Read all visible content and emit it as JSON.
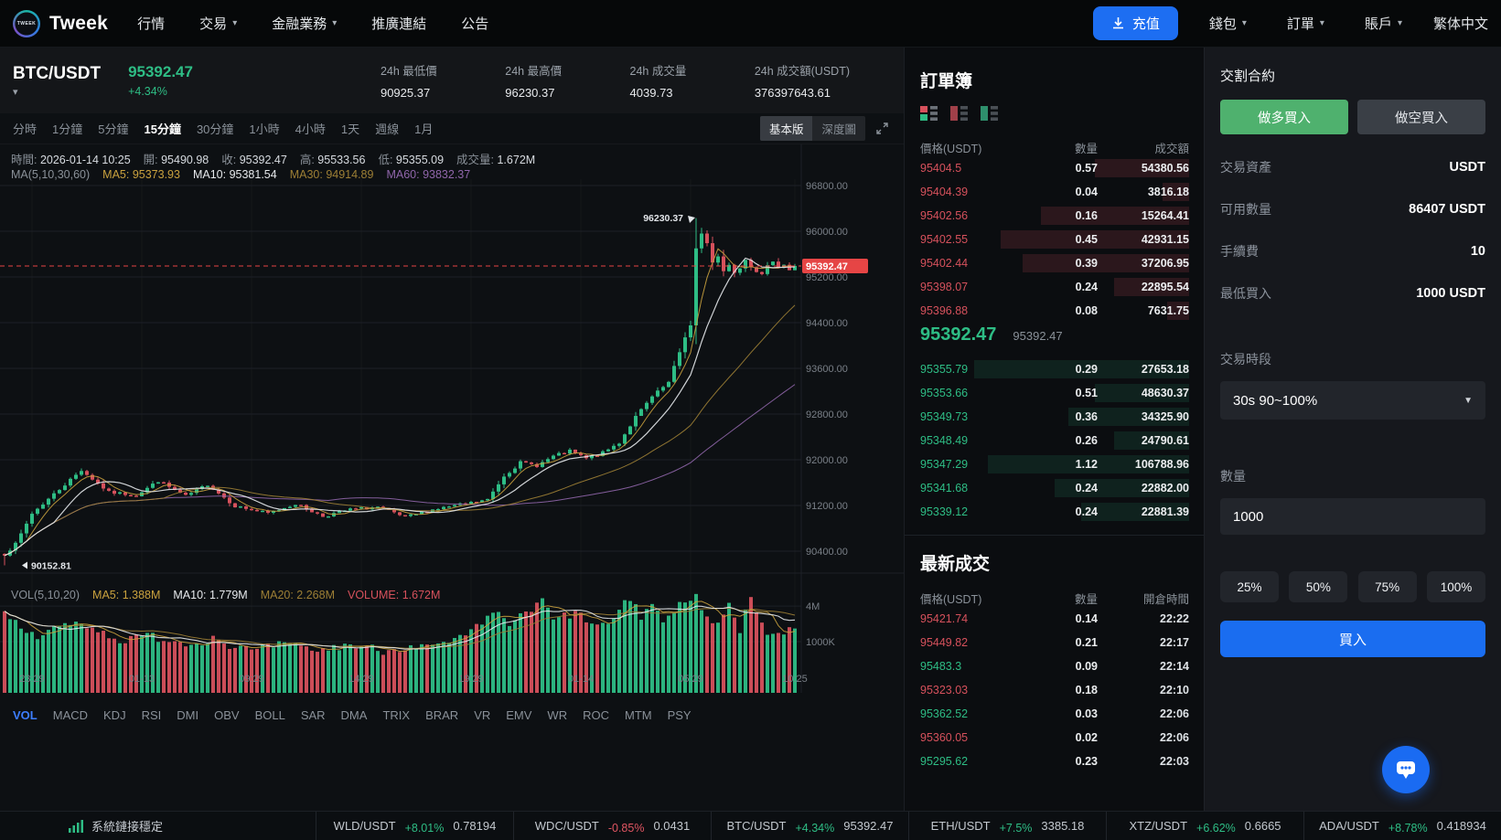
{
  "nav": {
    "brand": "Tweek",
    "menu": [
      {
        "id": "market",
        "label": "行情",
        "caret": false
      },
      {
        "id": "trade",
        "label": "交易",
        "caret": true
      },
      {
        "id": "finance",
        "label": "金融業務",
        "caret": true
      },
      {
        "id": "referral",
        "label": "推廣連結",
        "caret": false
      },
      {
        "id": "announcement",
        "label": "公告",
        "caret": false
      }
    ],
    "deposit_label": "充值",
    "right_menus": [
      {
        "id": "wallet",
        "label": "錢包",
        "caret": true
      },
      {
        "id": "orders",
        "label": "訂單",
        "caret": true
      },
      {
        "id": "account",
        "label": "賬戶",
        "caret": true
      }
    ],
    "language": "繁体中文"
  },
  "symbol": {
    "pair": "BTC/USDT",
    "price": "95392.47",
    "change": "+4.34%",
    "stats": [
      {
        "label": "24h 最低價",
        "value": "90925.37"
      },
      {
        "label": "24h 最高價",
        "value": "96230.37"
      },
      {
        "label": "24h 成交量",
        "value": "4039.73"
      },
      {
        "label": "24h 成交額(USDT)",
        "value": "376397643.61"
      }
    ]
  },
  "toolbar": {
    "timeframes": [
      "分時",
      "1分鐘",
      "5分鐘",
      "15分鐘",
      "30分鐘",
      "1小時",
      "4小時",
      "1天",
      "週線",
      "1月"
    ],
    "active_timeframe": "15分鐘",
    "view_tabs": [
      "基本版",
      "深度圖"
    ],
    "active_view": "基本版"
  },
  "chart_data": {
    "type": "candlestick",
    "pair": "BTC/USDT",
    "interval": "15m",
    "seed": 7,
    "candle_count": 145,
    "info_pairs": [
      [
        "時間",
        "2026-01-14 10:25"
      ],
      [
        "開",
        "95490.98"
      ],
      [
        "收",
        "95392.47"
      ],
      [
        "高",
        "95533.56"
      ],
      [
        "低",
        "95355.09"
      ],
      [
        "成交量",
        "1.672M"
      ]
    ],
    "ma_title": "MA(5,10,30,60)",
    "ma_items": [
      {
        "text": "MA5: 95373.93",
        "color": "#c9a13e"
      },
      {
        "text": "MA10: 95381.54",
        "color": "#e6e9ec"
      },
      {
        "text": "MA30: 94914.89",
        "color": "#9d7f35"
      },
      {
        "text": "MA60: 93832.37",
        "color": "#9066ab"
      }
    ],
    "vol_legend": [
      {
        "text": "VOL(5,10,20)",
        "color": "#8a9199"
      },
      {
        "text": "MA5: 1.388M",
        "color": "#c9a13e"
      },
      {
        "text": "MA10: 1.779M",
        "color": "#e6e9ec"
      },
      {
        "text": "MA20: 2.268M",
        "color": "#9d7f35"
      },
      {
        "text": "VOLUME: 1.672M",
        "color": "#d6515c"
      }
    ],
    "y_axis": {
      "max": 96800,
      "step": 800,
      "count": 9,
      "labels": [
        "96800.00",
        "96000.00",
        "95200.00",
        "94400.00",
        "93600.00",
        "92800.00",
        "92000.00",
        "91200.00",
        "90400.00"
      ]
    },
    "vol_axis_labels": [
      "4M",
      "1000K"
    ],
    "price_line": 95392.47,
    "price_line_label": "95392.47",
    "annotations": {
      "high": {
        "value": "96230.37",
        "index": 126
      },
      "low": {
        "value": "90152.81",
        "index": 0
      }
    },
    "x_ticks": [
      {
        "label": "23:29",
        "index": 5
      },
      {
        "label": "01-13",
        "index": 25
      },
      {
        "label": "09:29",
        "index": 45
      },
      {
        "label": "14:29",
        "index": 65
      },
      {
        "label": "19:29",
        "index": 85
      },
      {
        "label": "01-14",
        "index": 105
      },
      {
        "label": "05:29",
        "index": 125
      },
      {
        "label": "10:25",
        "index": 144
      }
    ],
    "close_waypoints": [
      [
        0,
        90350
      ],
      [
        2,
        90520
      ],
      [
        5,
        91060
      ],
      [
        9,
        91400
      ],
      [
        14,
        91820
      ],
      [
        19,
        91430
      ],
      [
        24,
        91380
      ],
      [
        28,
        91630
      ],
      [
        33,
        91360
      ],
      [
        37,
        91570
      ],
      [
        42,
        91190
      ],
      [
        48,
        91060
      ],
      [
        53,
        91230
      ],
      [
        58,
        91010
      ],
      [
        63,
        91130
      ],
      [
        68,
        91170
      ],
      [
        73,
        90990
      ],
      [
        78,
        91130
      ],
      [
        83,
        91210
      ],
      [
        88,
        91300
      ],
      [
        91,
        91720
      ],
      [
        94,
        91950
      ],
      [
        97,
        91900
      ],
      [
        100,
        92060
      ],
      [
        103,
        92150
      ],
      [
        106,
        92020
      ],
      [
        109,
        92120
      ],
      [
        112,
        92300
      ],
      [
        115,
        92750
      ],
      [
        118,
        93100
      ],
      [
        121,
        93350
      ],
      [
        124,
        94150
      ],
      [
        125,
        94350
      ],
      [
        126,
        95700
      ],
      [
        127,
        95950
      ],
      [
        128,
        95800
      ],
      [
        129,
        95450
      ],
      [
        130,
        95560
      ],
      [
        131,
        95300
      ],
      [
        132,
        95420
      ],
      [
        133,
        95280
      ],
      [
        134,
        95350
      ],
      [
        135,
        95500
      ],
      [
        136,
        95380
      ],
      [
        137,
        95300
      ],
      [
        138,
        95260
      ],
      [
        139,
        95420
      ],
      [
        140,
        95480
      ],
      [
        141,
        95350
      ],
      [
        142,
        95400
      ],
      [
        143,
        95330
      ],
      [
        144,
        95392.47
      ]
    ],
    "vol_waypoints": [
      [
        0,
        2.8
      ],
      [
        3,
        1.6
      ],
      [
        6,
        1.2
      ],
      [
        10,
        1.8
      ],
      [
        14,
        2.2
      ],
      [
        18,
        1.4
      ],
      [
        22,
        1.0
      ],
      [
        26,
        1.3
      ],
      [
        30,
        1.1
      ],
      [
        34,
        0.9
      ],
      [
        38,
        1.2
      ],
      [
        42,
        0.8
      ],
      [
        46,
        0.7
      ],
      [
        50,
        0.9
      ],
      [
        54,
        0.8
      ],
      [
        58,
        0.7
      ],
      [
        62,
        0.9
      ],
      [
        66,
        0.8
      ],
      [
        70,
        0.7
      ],
      [
        74,
        0.9
      ],
      [
        78,
        0.8
      ],
      [
        82,
        1.0
      ],
      [
        85,
        1.4
      ],
      [
        88,
        2.4
      ],
      [
        90,
        3.2
      ],
      [
        92,
        2.0
      ],
      [
        94,
        2.6
      ],
      [
        96,
        3.4
      ],
      [
        98,
        5.0
      ],
      [
        100,
        2.2
      ],
      [
        102,
        2.8
      ],
      [
        104,
        3.0
      ],
      [
        106,
        2.4
      ],
      [
        108,
        1.8
      ],
      [
        110,
        2.0
      ],
      [
        112,
        3.0
      ],
      [
        114,
        5.6
      ],
      [
        116,
        2.6
      ],
      [
        118,
        4.4
      ],
      [
        120,
        2.2
      ],
      [
        122,
        3.0
      ],
      [
        124,
        5.4
      ],
      [
        126,
        5.7
      ],
      [
        128,
        2.4
      ],
      [
        130,
        2.0
      ],
      [
        132,
        4.1
      ],
      [
        134,
        1.6
      ],
      [
        136,
        5.5
      ],
      [
        138,
        1.8
      ],
      [
        140,
        1.3
      ],
      [
        142,
        1.5
      ],
      [
        144,
        1.672
      ]
    ],
    "overrides": {
      "0": {
        "low": 90152.81
      },
      "126": {
        "high": 96230.37
      }
    }
  },
  "orderbook": {
    "title": "訂單簿",
    "columns": [
      "價格(USDT)",
      "數量",
      "成交額"
    ],
    "asks": [
      {
        "p": "95404.5",
        "q": "0.57",
        "a": "54380.56",
        "depth": 35
      },
      {
        "p": "95404.39",
        "q": "0.04",
        "a": "3816.18",
        "depth": 10
      },
      {
        "p": "95402.56",
        "q": "0.16",
        "a": "15264.41",
        "depth": 55
      },
      {
        "p": "95402.55",
        "q": "0.45",
        "a": "42931.15",
        "depth": 70
      },
      {
        "p": "95402.44",
        "q": "0.39",
        "a": "37206.95",
        "depth": 62
      },
      {
        "p": "95398.07",
        "q": "0.24",
        "a": "22895.54",
        "depth": 28
      },
      {
        "p": "95396.88",
        "q": "0.08",
        "a": "7631.75",
        "depth": 8
      }
    ],
    "last": {
      "price": "95392.47",
      "price_secondary": "95392.47"
    },
    "bids": [
      {
        "p": "95355.79",
        "q": "0.29",
        "a": "27653.18",
        "depth": 80
      },
      {
        "p": "95353.66",
        "q": "0.51",
        "a": "48630.37",
        "depth": 35
      },
      {
        "p": "95349.73",
        "q": "0.36",
        "a": "34325.90",
        "depth": 45
      },
      {
        "p": "95348.49",
        "q": "0.26",
        "a": "24790.61",
        "depth": 28
      },
      {
        "p": "95347.29",
        "q": "1.12",
        "a": "106788.96",
        "depth": 75
      },
      {
        "p": "95341.68",
        "q": "0.24",
        "a": "22882.00",
        "depth": 50
      },
      {
        "p": "95339.12",
        "q": "0.24",
        "a": "22881.39",
        "depth": 40
      }
    ]
  },
  "trades": {
    "title": "最新成交",
    "columns": [
      "價格(USDT)",
      "數量",
      "開倉時間"
    ],
    "rows": [
      {
        "p": "95421.74",
        "side": "down",
        "q": "0.14",
        "t": "22:22"
      },
      {
        "p": "95449.82",
        "side": "down",
        "q": "0.21",
        "t": "22:17"
      },
      {
        "p": "95483.3",
        "side": "up",
        "q": "0.09",
        "t": "22:14"
      },
      {
        "p": "95323.03",
        "side": "down",
        "q": "0.18",
        "t": "22:10"
      },
      {
        "p": "95362.52",
        "side": "up",
        "q": "0.03",
        "t": "22:06"
      },
      {
        "p": "95360.05",
        "side": "down",
        "q": "0.02",
        "t": "22:06"
      },
      {
        "p": "95295.62",
        "side": "up",
        "q": "0.23",
        "t": "22:03"
      }
    ]
  },
  "panel": {
    "title": "交割合約",
    "long_label": "做多買入",
    "short_label": "做空買入",
    "rows": [
      {
        "label": "交易資產",
        "value": "USDT"
      },
      {
        "label": "可用數量",
        "value": "86407 USDT"
      },
      {
        "label": "手續費",
        "value": "10"
      },
      {
        "label": "最低買入",
        "value": "1000 USDT"
      }
    ],
    "period_label": "交易時段",
    "period_value": "30s 90~100%",
    "amount_label": "數量",
    "amount_value": "1000",
    "percents": [
      "25%",
      "50%",
      "75%",
      "100%"
    ],
    "buy_label": "買入"
  },
  "indicators": {
    "items": [
      "VOL",
      "MACD",
      "KDJ",
      "RSI",
      "DMI",
      "OBV",
      "BOLL",
      "SAR",
      "DMA",
      "TRIX",
      "BRAR",
      "VR",
      "EMV",
      "WR",
      "ROC",
      "MTM",
      "PSY"
    ],
    "active": "VOL"
  },
  "status_bar": {
    "status": "系統鏈接穩定",
    "tickers": [
      {
        "pair": "WLD/USDT",
        "chg": "+8.01%",
        "price": "0.78194",
        "up": true
      },
      {
        "pair": "WDC/USDT",
        "chg": "-0.85%",
        "price": "0.0431",
        "up": false
      },
      {
        "pair": "BTC/USDT",
        "chg": "+4.34%",
        "price": "95392.47",
        "up": true
      },
      {
        "pair": "ETH/USDT",
        "chg": "+7.5%",
        "price": "3385.18",
        "up": true
      },
      {
        "pair": "XTZ/USDT",
        "chg": "+6.62%",
        "price": "0.6665",
        "up": true
      },
      {
        "pair": "ADA/USDT",
        "chg": "+8.78%",
        "price": "0.418934",
        "up": true
      }
    ]
  },
  "colors": {
    "up": "#2ebd85",
    "down": "#d6515c",
    "ma5": "#c9a13e",
    "ma10": "#e6e9ec",
    "ma30": "#9d7f35",
    "ma60": "#9066ab",
    "price_label_bg": "#e64545",
    "accent_blue": "#1a6df0",
    "long_green": "#4fb16e",
    "grid": "#1d2127",
    "grid_faint": "#15171a",
    "axis_text": "#7a8088"
  },
  "icons": {
    "brand": "brand-logo",
    "deposit": "download-icon",
    "menus": "caret-down-icon",
    "chart_expand": "expand-icon",
    "orderbook_modes": [
      "book-split-icon",
      "book-asks-icon",
      "book-bids-icon"
    ],
    "status": "signal-bars-icon",
    "chat": "chat-bubble-icon"
  }
}
